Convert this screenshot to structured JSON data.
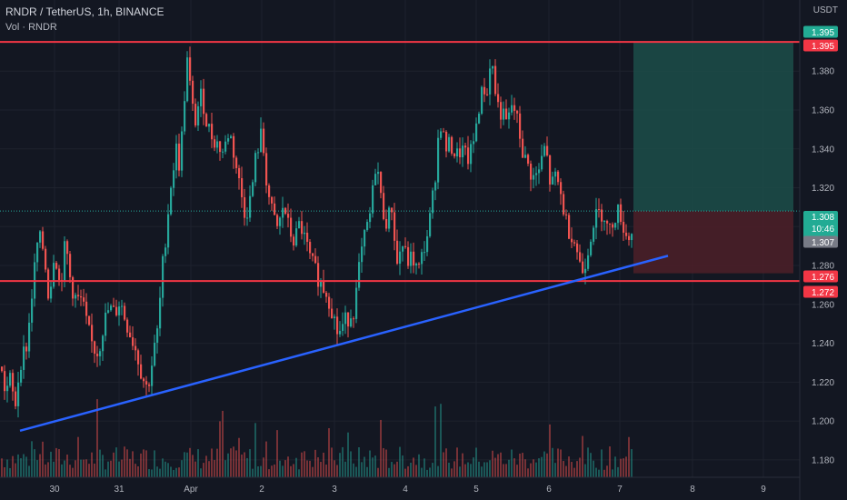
{
  "header": {
    "title": "RNDR / TetherUS, 1h, BINANCE",
    "volume_label": "Vol · RNDR"
  },
  "colors": {
    "background": "#131722",
    "up": "#26a69a",
    "down": "#ef5350",
    "resistance": "#f23645",
    "trendline": "#2962ff",
    "profit_zone": "#1c4a47",
    "loss_zone": "#4a1f28"
  },
  "chart_data": {
    "type": "candlestick",
    "title": "RNDR / TetherUS, 1h, BINANCE",
    "y_unit": "USDT",
    "y_ticks": [
      "1.380",
      "1.360",
      "1.340",
      "1.320",
      "1.300",
      "1.280",
      "1.260",
      "1.240",
      "1.220",
      "1.200",
      "1.180"
    ],
    "x_ticks": [
      "30",
      "31",
      "Apr",
      "2",
      "3",
      "4",
      "5",
      "6",
      "7",
      "8",
      "9"
    ],
    "ylim": [
      1.172,
      1.396
    ],
    "price_path": [
      [
        0,
        1.228
      ],
      [
        6,
        1.215
      ],
      [
        12,
        1.222
      ],
      [
        16,
        1.205
      ],
      [
        22,
        1.23
      ],
      [
        30,
        1.24
      ],
      [
        36,
        1.27
      ],
      [
        42,
        1.295
      ],
      [
        48,
        1.288
      ],
      [
        54,
        1.262
      ],
      [
        60,
        1.29
      ],
      [
        66,
        1.268
      ],
      [
        72,
        1.292
      ],
      [
        78,
        1.27
      ],
      [
        84,
        1.262
      ],
      [
        90,
        1.262
      ],
      [
        96,
        1.248
      ],
      [
        102,
        1.238
      ],
      [
        108,
        1.235
      ],
      [
        114,
        1.25
      ],
      [
        120,
        1.258
      ],
      [
        126,
        1.255
      ],
      [
        132,
        1.262
      ],
      [
        138,
        1.252
      ],
      [
        144,
        1.244
      ],
      [
        150,
        1.236
      ],
      [
        156,
        1.224
      ],
      [
        162,
        1.216
      ],
      [
        168,
        1.232
      ],
      [
        174,
        1.248
      ],
      [
        178,
        1.276
      ],
      [
        182,
        1.294
      ],
      [
        188,
        1.322
      ],
      [
        194,
        1.34
      ],
      [
        198,
        1.33
      ],
      [
        202,
        1.362
      ],
      [
        206,
        1.385
      ],
      [
        210,
        1.368
      ],
      [
        214,
        1.352
      ],
      [
        218,
        1.362
      ],
      [
        222,
        1.368
      ],
      [
        228,
        1.352
      ],
      [
        234,
        1.346
      ],
      [
        240,
        1.342
      ],
      [
        246,
        1.338
      ],
      [
        252,
        1.35
      ],
      [
        258,
        1.336
      ],
      [
        264,
        1.32
      ],
      [
        270,
        1.306
      ],
      [
        276,
        1.315
      ],
      [
        282,
        1.338
      ],
      [
        288,
        1.348
      ],
      [
        294,
        1.32
      ],
      [
        300,
        1.305
      ],
      [
        306,
        1.298
      ],
      [
        312,
        1.312
      ],
      [
        318,
        1.298
      ],
      [
        324,
        1.292
      ],
      [
        330,
        1.302
      ],
      [
        336,
        1.292
      ],
      [
        342,
        1.282
      ],
      [
        348,
        1.276
      ],
      [
        354,
        1.27
      ],
      [
        360,
        1.266
      ],
      [
        366,
        1.256
      ],
      [
        372,
        1.244
      ],
      [
        378,
        1.25
      ],
      [
        384,
        1.254
      ],
      [
        390,
        1.258
      ],
      [
        396,
        1.282
      ],
      [
        402,
        1.296
      ],
      [
        408,
        1.308
      ],
      [
        414,
        1.336
      ],
      [
        420,
        1.31
      ],
      [
        426,
        1.302
      ],
      [
        432,
        1.312
      ],
      [
        436,
        1.278
      ],
      [
        442,
        1.292
      ],
      [
        448,
        1.282
      ],
      [
        454,
        1.284
      ],
      [
        460,
        1.276
      ],
      [
        466,
        1.288
      ],
      [
        472,
        1.3
      ],
      [
        478,
        1.322
      ],
      [
        484,
        1.356
      ],
      [
        490,
        1.34
      ],
      [
        496,
        1.342
      ],
      [
        502,
        1.336
      ],
      [
        508,
        1.34
      ],
      [
        514,
        1.334
      ],
      [
        520,
        1.34
      ],
      [
        526,
        1.36
      ],
      [
        532,
        1.372
      ],
      [
        536,
        1.368
      ],
      [
        540,
        1.39
      ],
      [
        544,
        1.372
      ],
      [
        548,
        1.362
      ],
      [
        552,
        1.358
      ],
      [
        558,
        1.352
      ],
      [
        564,
        1.364
      ],
      [
        570,
        1.352
      ],
      [
        576,
        1.336
      ],
      [
        582,
        1.33
      ],
      [
        588,
        1.324
      ],
      [
        594,
        1.33
      ],
      [
        600,
        1.342
      ],
      [
        606,
        1.32
      ],
      [
        612,
        1.326
      ],
      [
        618,
        1.314
      ],
      [
        624,
        1.3
      ],
      [
        630,
        1.296
      ],
      [
        636,
        1.286
      ],
      [
        640,
        1.276
      ],
      [
        646,
        1.286
      ],
      [
        652,
        1.302
      ],
      [
        658,
        1.306
      ],
      [
        664,
        1.308
      ],
      [
        670,
        1.296
      ],
      [
        676,
        1.306
      ],
      [
        682,
        1.308
      ],
      [
        688,
        1.296
      ],
      [
        694,
        1.294
      ],
      [
        697,
        1.307
      ]
    ],
    "levels": [
      {
        "name": "Resistance",
        "value": 1.395
      },
      {
        "name": "Support",
        "value": 1.272
      }
    ],
    "trendline": {
      "from": [
        22,
        1.195
      ],
      "to": [
        735,
        1.285
      ]
    },
    "position": {
      "entry": 1.308,
      "target": 1.395,
      "stop": 1.276
    },
    "price_labels": {
      "resistance_top": "1.395",
      "resistance_bottom": "1.395",
      "current_price": "1.308",
      "countdown": "10:46",
      "last": "1.307",
      "stop": "1.276",
      "support": "1.272"
    },
    "volume": "bars along the bottom, colored by candle direction"
  }
}
